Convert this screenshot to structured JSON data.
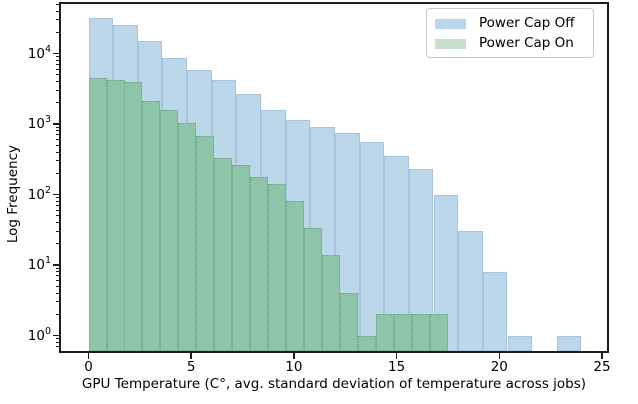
{
  "chart_data": {
    "type": "bar",
    "subtype": "overlaid-histogram-log-y",
    "title": "",
    "xlabel": "GPU Temperature (C°, avg. standard deviation of temperature across jobs)",
    "ylabel": "Log Frequency",
    "x_ticks": [
      0,
      5,
      10,
      15,
      20,
      25
    ],
    "y_tick_exponents": [
      0,
      1,
      2,
      3,
      4
    ],
    "y_tick_base": "10",
    "xlim": [
      -1.34,
      25.24
    ],
    "ylim": [
      0.58,
      50000
    ],
    "grid": false,
    "legend_position": "upper right",
    "series": [
      {
        "name": "Power Cap Off",
        "bin_start": 0,
        "bin_width": 1.2,
        "counts": [
          32000,
          25500,
          15000,
          8600,
          5800,
          4150,
          2700,
          1600,
          1150,
          900,
          745,
          555,
          355,
          230,
          100,
          30,
          8,
          1,
          0,
          1
        ],
        "fill_color": "#bcd6ea",
        "legend_color": "#b9d5ea"
      },
      {
        "name": "Power Cap On",
        "bin_start": 0,
        "bin_width": 0.875,
        "counts": [
          4450,
          4200,
          3950,
          2100,
          1600,
          1030,
          670,
          330,
          265,
          180,
          140,
          80,
          33,
          14,
          4,
          1,
          2,
          2,
          2,
          2
        ],
        "fill_color": "#8ec5a8",
        "legend_color": "#c8dfca"
      }
    ],
    "axis_colors": {
      "spine": "#1c1c1c",
      "tick": "#1c1c1c",
      "text": "#000000"
    }
  }
}
